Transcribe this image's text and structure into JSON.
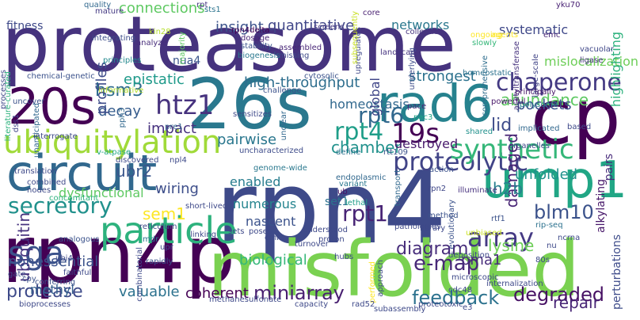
{
  "words": [
    {
      "text": "proteasome",
      "color": "#46337e"
    },
    {
      "text": "rpn4",
      "color": "#3e4a89"
    },
    {
      "text": "rpn4p",
      "color": "#440154"
    },
    {
      "text": "misfolded",
      "color": "#7ad151"
    },
    {
      "text": "26s",
      "color": "#2a788e"
    },
    {
      "text": "cp",
      "color": "#440154"
    },
    {
      "text": "20s",
      "color": "#440154"
    },
    {
      "text": "rad6",
      "color": "#26828e"
    },
    {
      "text": "circuit",
      "color": "#31688e"
    },
    {
      "text": "ump1",
      "color": "#21a685"
    },
    {
      "text": "particle",
      "color": "#2db27d"
    },
    {
      "text": "ubiquitylation",
      "color": "#a0da39"
    },
    {
      "text": "chaperone",
      "color": "#443a83"
    },
    {
      "text": "proteolytic",
      "color": "#414487"
    },
    {
      "text": "synthetic",
      "color": "#35b779"
    },
    {
      "text": "secretory",
      "color": "#21918c"
    },
    {
      "text": "feedback",
      "color": "#2c728e"
    },
    {
      "text": "degraded",
      "color": "#471164"
    },
    {
      "text": "miniarray",
      "color": "#481f70"
    },
    {
      "text": "sga",
      "color": "#3b528b"
    },
    {
      "text": "rpt1",
      "color": "#482475"
    },
    {
      "text": "diagram",
      "color": "#472d7b"
    },
    {
      "text": "array",
      "color": "#443983"
    },
    {
      "text": "e-map",
      "color": "#482878"
    },
    {
      "text": "rpt6",
      "color": "#31688e"
    },
    {
      "text": "rpt4",
      "color": "#1f9e89"
    },
    {
      "text": "19s",
      "color": "#440154"
    },
    {
      "text": "htz1",
      "color": "#46327e"
    },
    {
      "text": "lid",
      "color": "#3e4c8a"
    },
    {
      "text": "abundance",
      "color": "#5ec962"
    },
    {
      "text": "connections",
      "color": "#5ec962"
    },
    {
      "text": "insight",
      "color": "#3b528b"
    },
    {
      "text": "quantitative",
      "color": "#404688"
    },
    {
      "text": "networks",
      "color": "#2a788e"
    },
    {
      "text": "systematic",
      "color": "#3f4889"
    },
    {
      "text": "fitness",
      "color": "#3e4989"
    },
    {
      "text": "hsm3",
      "color": "#2f6c8e"
    },
    {
      "text": "decay",
      "color": "#365c8d"
    },
    {
      "text": "impact",
      "color": "#46307e"
    },
    {
      "text": "epistatic",
      "color": "#1f9a8a"
    },
    {
      "text": "profiles",
      "color": "#3e4c8a"
    },
    {
      "text": "high-throughput",
      "color": "#2e6e8e"
    },
    {
      "text": "strongest",
      "color": "#2c728e"
    },
    {
      "text": "homeostasis",
      "color": "#31688e"
    },
    {
      "text": "chamber",
      "color": "#21918c"
    },
    {
      "text": "pairwise",
      "color": "#2a778e"
    },
    {
      "text": "ubr2",
      "color": "#39558c"
    },
    {
      "text": "dysfunctional",
      "color": "#5ec962"
    },
    {
      "text": "sem1",
      "color": "#fde725"
    },
    {
      "text": "wiring",
      "color": "#3d4e8a"
    },
    {
      "text": "blm10",
      "color": "#3b528b"
    },
    {
      "text": "damaged",
      "color": "#482475"
    },
    {
      "text": "h2b",
      "color": "#277f8e"
    },
    {
      "text": "unfolded",
      "color": "#20928c"
    },
    {
      "text": "pockets",
      "color": "#3b528b"
    },
    {
      "text": "destroyed",
      "color": "#481a6c"
    },
    {
      "text": "mislocalization",
      "color": "#6ece58"
    },
    {
      "text": "pma1",
      "color": "#472c7a"
    },
    {
      "text": "lysine",
      "color": "#6ece58"
    },
    {
      "text": "repair",
      "color": "#482576"
    },
    {
      "text": "coherent",
      "color": "#440154"
    },
    {
      "text": "valuable",
      "color": "#2c728e"
    },
    {
      "text": "protease",
      "color": "#3e4a89"
    },
    {
      "text": "ubiquitin",
      "color": "#46327e"
    },
    {
      "text": "nonessential",
      "color": "#3b528b"
    },
    {
      "text": "methyl",
      "color": "#355f8d"
    },
    {
      "text": "biological",
      "color": "#35b779"
    },
    {
      "text": "nascent",
      "color": "#3b528b"
    },
    {
      "text": "numerous",
      "color": "#25848e"
    },
    {
      "text": "enabled",
      "color": "#287d8e"
    },
    {
      "text": "global",
      "color": "#404688"
    },
    {
      "text": "nua4",
      "color": "#3a548c"
    },
    {
      "text": "set1",
      "color": "#2c728e"
    },
    {
      "text": "alkylating",
      "color": "#48186a"
    },
    {
      "text": "pairs",
      "color": "#472a7a"
    },
    {
      "text": "highlighting",
      "color": "#2db27d"
    },
    {
      "text": "perturbations",
      "color": "#3e4c8a"
    },
    {
      "text": "quality",
      "color": "#31688e"
    },
    {
      "text": "mature",
      "color": "#443983"
    },
    {
      "text": "rpt",
      "color": "#453781"
    },
    {
      "text": "sts1",
      "color": "#2b748e"
    },
    {
      "text": "rpn4delta",
      "color": "#440154"
    },
    {
      "text": "kin28",
      "color": "#b5de2b"
    },
    {
      "text": "integrating",
      "color": "#3d4e8a"
    },
    {
      "text": "analyze",
      "color": "#472d7b"
    },
    {
      "text": "principles",
      "color": "#23898e"
    },
    {
      "text": "majority",
      "color": "#5ec962"
    },
    {
      "text": "dosage",
      "color": "#482475"
    },
    {
      "text": "stability",
      "color": "#3b528b"
    },
    {
      "text": "biogenesis",
      "color": "#2a788e"
    },
    {
      "text": "assembled",
      "color": "#482677"
    },
    {
      "text": "missing",
      "color": "#3e4a89"
    },
    {
      "text": "screens",
      "color": "#453882"
    },
    {
      "text": "upregulates",
      "color": "#3f4889"
    },
    {
      "text": "core",
      "color": "#481f70"
    },
    {
      "text": "subsequently",
      "color": "#c8e020"
    },
    {
      "text": "collection",
      "color": "#46337e"
    },
    {
      "text": "landscape",
      "color": "#463480"
    },
    {
      "text": "underlying",
      "color": "#3e4c8a"
    },
    {
      "text": "homeostatic",
      "color": "#2c728e"
    },
    {
      "text": "yku70",
      "color": "#482173"
    },
    {
      "text": "ongoing",
      "color": "#fde725"
    },
    {
      "text": "agents",
      "color": "#fde725"
    },
    {
      "text": "slowly",
      "color": "#35b779"
    },
    {
      "text": "emc",
      "color": "#482677"
    },
    {
      "text": "acetyltransferase",
      "color": "#46327e"
    },
    {
      "text": "vacuolar",
      "color": "#3f4788"
    },
    {
      "text": "ligase",
      "color": "#46307e"
    },
    {
      "text": "large-scale",
      "color": "#414487"
    },
    {
      "text": "comprehensive",
      "color": "#2e6e8e"
    },
    {
      "text": "principally",
      "color": "#481769"
    },
    {
      "text": "polysome",
      "color": "#277f8e"
    },
    {
      "text": "powerful",
      "color": "#48186a"
    },
    {
      "text": "implicated",
      "color": "#31688e"
    },
    {
      "text": "based",
      "color": "#3e4989"
    },
    {
      "text": "chemical-genetic",
      "color": "#3b528b"
    },
    {
      "text": "informative",
      "color": "#b5de2b"
    },
    {
      "text": "processes",
      "color": "#3f4788"
    },
    {
      "text": "literature-curated",
      "color": "#2db27d"
    },
    {
      "text": "uncover",
      "color": "#3b528b"
    },
    {
      "text": "dss1",
      "color": "#414487"
    },
    {
      "text": "unanticipated",
      "color": "#31688e"
    },
    {
      "text": "pph3",
      "color": "#31688e"
    },
    {
      "text": "pre1",
      "color": "#33638d"
    },
    {
      "text": "interrogate",
      "color": "#3e4989"
    },
    {
      "text": "cytosolic",
      "color": "#3b528b"
    },
    {
      "text": "challenge",
      "color": "#3b528b"
    },
    {
      "text": "unclear",
      "color": "#31688e"
    },
    {
      "text": "sensitizes",
      "color": "#3e4989"
    },
    {
      "text": "pace",
      "color": "#482576"
    },
    {
      "text": "pac3",
      "color": "#20a486"
    },
    {
      "text": "define",
      "color": "#2c728e"
    },
    {
      "text": "rtt109",
      "color": "#3b528b"
    },
    {
      "text": "organelles",
      "color": "#3e4a89"
    },
    {
      "text": "shared",
      "color": "#21918c"
    },
    {
      "text": "uncharacterized",
      "color": "#3e4c8a"
    },
    {
      "text": "npl4",
      "color": "#3e4a89"
    },
    {
      "text": "genome-wide",
      "color": "#2a788e"
    },
    {
      "text": "endoplasmic",
      "color": "#31688e"
    },
    {
      "text": "transport",
      "color": "#31688e"
    },
    {
      "text": "action",
      "color": "#3b528b"
    },
    {
      "text": "rpn2",
      "color": "#3f4788"
    },
    {
      "text": "variant",
      "color": "#2a788e"
    },
    {
      "text": "ub",
      "color": "#471164"
    },
    {
      "text": "lethal",
      "color": "#1f9e89"
    },
    {
      "text": "rtf1",
      "color": "#3b528b"
    },
    {
      "text": "method",
      "color": "#3b528b"
    },
    {
      "text": "unbiased",
      "color": "#c8e020"
    },
    {
      "text": "illuminate",
      "color": "#46307e"
    },
    {
      "text": "evolutionary",
      "color": "#3b528b"
    },
    {
      "text": "pathologies",
      "color": "#3e4989"
    },
    {
      "text": "library",
      "color": "#3e4989"
    },
    {
      "text": "rip-seq",
      "color": "#2c728e"
    },
    {
      "text": "translation",
      "color": "#3e4989"
    },
    {
      "text": "combined",
      "color": "#3e4989"
    },
    {
      "text": "discovered",
      "color": "#3e4989"
    },
    {
      "text": "v-atpase",
      "color": "#22a884"
    },
    {
      "text": "nodes",
      "color": "#3e4989"
    },
    {
      "text": "concomitant",
      "color": "#2db27d"
    },
    {
      "text": "short-lived",
      "color": "#3e4989"
    },
    {
      "text": "reticulum",
      "color": "#3e4989"
    },
    {
      "text": "analogous",
      "color": "#3b528b"
    },
    {
      "text": "gate",
      "color": "#3e4989"
    },
    {
      "text": "ubi4",
      "color": "#3e4989"
    },
    {
      "text": "mdr",
      "color": "#2a788e"
    },
    {
      "text": "linking",
      "color": "#3e4989"
    },
    {
      "text": "upr",
      "color": "#3e4989"
    },
    {
      "text": "rapidly",
      "color": "#3b528b"
    },
    {
      "text": "cpy",
      "color": "#3b528b"
    },
    {
      "text": "conferring",
      "color": "#3b528b"
    },
    {
      "text": "combinatorial",
      "color": "#3e4989"
    },
    {
      "text": "faithful",
      "color": "#3e4989"
    },
    {
      "text": "bioprocesses",
      "color": "#3e4989"
    },
    {
      "text": "understood",
      "color": "#3e4989"
    },
    {
      "text": "proton",
      "color": "#3e4989"
    },
    {
      "text": "turnover",
      "color": "#3e4989"
    },
    {
      "text": "cmr1",
      "color": "#3e4989"
    },
    {
      "text": "sets",
      "color": "#3e4989"
    },
    {
      "text": "poses",
      "color": "#3e4989"
    },
    {
      "text": "hubs",
      "color": "#3e4989"
    },
    {
      "text": "deposition",
      "color": "#3e4989"
    },
    {
      "text": "microscopic",
      "color": "#3e4989"
    },
    {
      "text": "approach",
      "color": "#3e4989"
    },
    {
      "text": "performed",
      "color": "#fde725"
    },
    {
      "text": "methanesulfonate",
      "color": "#3e4989"
    },
    {
      "text": "capacity",
      "color": "#3e4989"
    },
    {
      "text": "rad52",
      "color": "#3e4989"
    },
    {
      "text": "subassembly",
      "color": "#3e4989"
    },
    {
      "text": "proteotoxic",
      "color": "#3e4989"
    },
    {
      "text": "e3",
      "color": "#3e4989"
    },
    {
      "text": "cdc48",
      "color": "#3e4989"
    },
    {
      "text": "internalization",
      "color": "#3e4989"
    },
    {
      "text": "80s",
      "color": "#3e4989"
    },
    {
      "text": "nu",
      "color": "#3e4989"
    },
    {
      "text": "ncrna",
      "color": "#3e4989"
    }
  ]
}
